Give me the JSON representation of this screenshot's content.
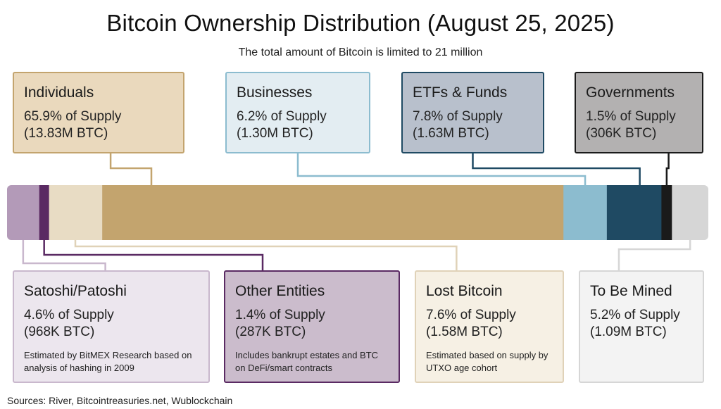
{
  "title": "Bitcoin Ownership Distribution (August 25, 2025)",
  "subtitle": "The total amount of Bitcoin is limited to 21 million",
  "sources": "Sources: River, Bitcointreasuries.net, Wublockchain",
  "chart_data": {
    "type": "bar",
    "orientation": "horizontal-stacked",
    "total": "21 million",
    "segments": [
      {
        "name": "Satoshi/Patoshi",
        "percent": 4.6,
        "supply": "4.6% of Supply",
        "btc": "(968K BTC)",
        "note": "Estimated by BitMEX Research based on analysis of hashing in 2009",
        "color": "#b39ab8",
        "card_bg": "#ece6ee",
        "card_border": "#c9b8cd"
      },
      {
        "name": "Other Entities",
        "percent": 1.4,
        "supply": "1.4% of Supply",
        "btc": "(287K BTC)",
        "note": "Includes bankrupt estates and BTC on DeFi/smart contracts",
        "color": "#5a2a63",
        "card_bg": "#cbbccc",
        "card_border": "#5a2a63"
      },
      {
        "name": "Lost Bitcoin",
        "percent": 7.6,
        "supply": "7.6% of Supply",
        "btc": "(1.58M BTC)",
        "note": "Estimated based on supply by UTXO age cohort",
        "color": "#e8dcc4",
        "card_bg": "#f6f0e4",
        "card_border": "#e0d2b8"
      },
      {
        "name": "Individuals",
        "percent": 65.9,
        "supply": "65.9% of Supply",
        "btc": "(13.83M BTC)",
        "note": "",
        "color": "#c3a46e",
        "card_bg": "#ead9bd",
        "card_border": "#c3a46e"
      },
      {
        "name": "Businesses",
        "percent": 6.2,
        "supply": "6.2% of Supply",
        "btc": "(1.30M BTC)",
        "note": "",
        "color": "#8cbccf",
        "card_bg": "#e3edf2",
        "card_border": "#8cbccf"
      },
      {
        "name": "ETFs & Funds",
        "percent": 7.8,
        "supply": "7.8% of Supply",
        "btc": "(1.63M BTC)",
        "note": "",
        "color": "#1f4a63",
        "card_bg": "#b8c0cc",
        "card_border": "#1f4a63"
      },
      {
        "name": "Governments",
        "percent": 1.5,
        "supply": "1.5% of Supply",
        "btc": "(306K BTC)",
        "note": "",
        "color": "#1a1a1a",
        "card_bg": "#b3b1b1",
        "card_border": "#1a1a1a"
      },
      {
        "name": "To Be Mined",
        "percent": 5.2,
        "supply": "5.2% of Supply",
        "btc": "(1.09M BTC)",
        "note": "",
        "color": "#d6d6d6",
        "card_bg": "#f3f3f3",
        "card_border": "#d6d6d6"
      }
    ]
  }
}
